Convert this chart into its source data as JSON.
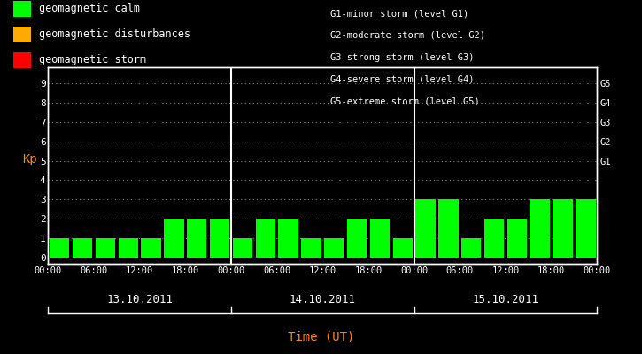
{
  "background_color": "#000000",
  "plot_bg_color": "#000000",
  "bar_color": "#00ff00",
  "text_color": "#ffffff",
  "kp_label_color": "#ff8800",
  "xlabel_color": "#ff8800",
  "grid_color": "#888888",
  "days": [
    "13.10.2011",
    "14.10.2011",
    "15.10.2011"
  ],
  "kp_values": [
    [
      1,
      1,
      1,
      1,
      1,
      2,
      2,
      2
    ],
    [
      1,
      2,
      2,
      1,
      1,
      2,
      2,
      1
    ],
    [
      3,
      3,
      1,
      2,
      2,
      3,
      3,
      3
    ]
  ],
  "legend_items": [
    {
      "label": "geomagnetic calm",
      "color": "#00ff00"
    },
    {
      "label": "geomagnetic disturbances",
      "color": "#ffaa00"
    },
    {
      "label": "geomagnetic storm",
      "color": "#ff0000"
    }
  ],
  "storm_labels": [
    "G1-minor storm (level G1)",
    "G2-moderate storm (level G2)",
    "G3-strong storm (level G3)",
    "G4-severe storm (level G4)",
    "G5-extreme storm (level G5)"
  ],
  "right_axis_labels": [
    "G5",
    "G4",
    "G3",
    "G2",
    "G1"
  ],
  "right_axis_positions": [
    9,
    8,
    7,
    6,
    5
  ],
  "yticks": [
    0,
    1,
    2,
    3,
    4,
    5,
    6,
    7,
    8,
    9
  ],
  "ylim": [
    -0.3,
    9.8
  ],
  "xlabel": "Time (UT)",
  "ylabel": "Kp",
  "time_labels": [
    "00:00",
    "06:00",
    "12:00",
    "18:00",
    "00:00"
  ],
  "figsize": [
    7.25,
    4.0
  ],
  "dpi": 100
}
